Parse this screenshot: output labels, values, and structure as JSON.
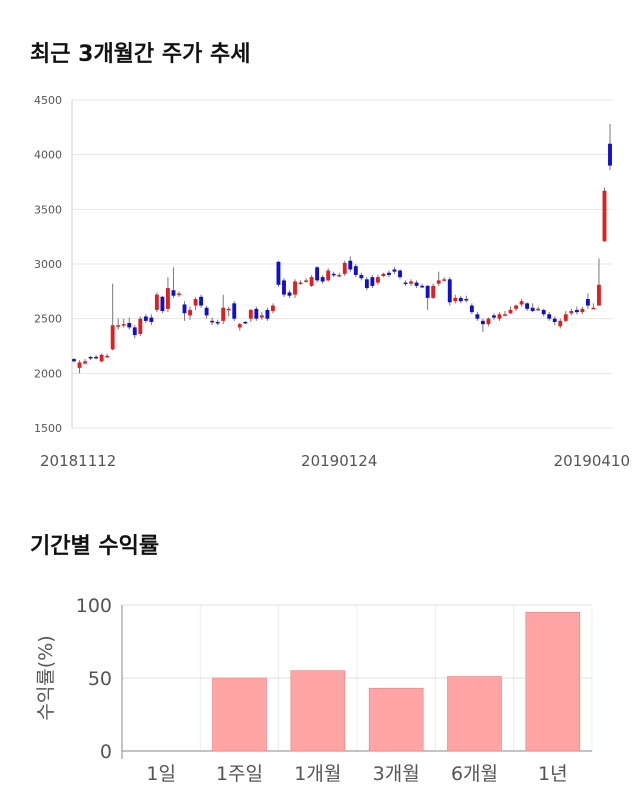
{
  "section1": {
    "title": "최근 3개월간 주가 추세"
  },
  "section2": {
    "title": "기간별 수익률"
  },
  "colors": {
    "up": "#e02020",
    "down": "#1010c8",
    "grid": "#e5e5e5",
    "bar": "#ffa5a5",
    "bar_stroke": "#e58080"
  },
  "chart_data": [
    {
      "type": "candlestick",
      "title": "최근 3개월간 주가 추세",
      "ylim": [
        1500,
        4500
      ],
      "yticks": [
        "4500",
        "4000",
        "3500",
        "3000",
        "2500",
        "2000",
        "1500"
      ],
      "xtick_labels": [
        "20181112",
        "20190124",
        "20190410"
      ],
      "xtick_index": [
        0,
        48,
        98
      ],
      "candles": [
        [
          2130,
          2110,
          2140,
          2100
        ],
        [
          2050,
          2100,
          2120,
          2000
        ],
        [
          2090,
          2110,
          2130,
          2080
        ],
        [
          2150,
          2140,
          2160,
          2120
        ],
        [
          2150,
          2140,
          2170,
          2130
        ],
        [
          2110,
          2170,
          2180,
          2100
        ],
        [
          2160,
          2160,
          2180,
          2140
        ],
        [
          2220,
          2440,
          2820,
          2210
        ],
        [
          2430,
          2440,
          2500,
          2400
        ],
        [
          2440,
          2450,
          2500,
          2420
        ],
        [
          2460,
          2420,
          2510,
          2400
        ],
        [
          2420,
          2350,
          2440,
          2320
        ],
        [
          2360,
          2500,
          2520,
          2340
        ],
        [
          2520,
          2480,
          2540,
          2460
        ],
        [
          2510,
          2470,
          2540,
          2440
        ],
        [
          2580,
          2720,
          2740,
          2560
        ],
        [
          2700,
          2570,
          2710,
          2550
        ],
        [
          2590,
          2780,
          2880,
          2560
        ],
        [
          2760,
          2710,
          2970,
          2690
        ],
        [
          2730,
          2730,
          2750,
          2700
        ],
        [
          2630,
          2550,
          2660,
          2480
        ],
        [
          2530,
          2580,
          2610,
          2490
        ],
        [
          2620,
          2680,
          2700,
          2580
        ],
        [
          2700,
          2620,
          2720,
          2600
        ],
        [
          2600,
          2530,
          2620,
          2500
        ],
        [
          2480,
          2470,
          2510,
          2440
        ],
        [
          2470,
          2460,
          2490,
          2440
        ],
        [
          2480,
          2600,
          2720,
          2450
        ],
        [
          2590,
          2590,
          2610,
          2520
        ],
        [
          2640,
          2500,
          2660,
          2480
        ],
        [
          2420,
          2450,
          2460,
          2390
        ],
        [
          2470,
          2460,
          2480,
          2450
        ],
        [
          2500,
          2580,
          2590,
          2470
        ],
        [
          2590,
          2500,
          2610,
          2480
        ],
        [
          2510,
          2530,
          2560,
          2490
        ],
        [
          2580,
          2500,
          2600,
          2480
        ],
        [
          2570,
          2620,
          2640,
          2550
        ],
        [
          3020,
          2810,
          3030,
          2790
        ],
        [
          2850,
          2720,
          2870,
          2700
        ],
        [
          2740,
          2710,
          2760,
          2690
        ],
        [
          2720,
          2840,
          2860,
          2690
        ],
        [
          2830,
          2830,
          2850,
          2810
        ],
        [
          2850,
          2850,
          2870,
          2830
        ],
        [
          2800,
          2880,
          2900,
          2790
        ],
        [
          2970,
          2850,
          2980,
          2830
        ],
        [
          2880,
          2840,
          2900,
          2820
        ],
        [
          2850,
          2940,
          2960,
          2840
        ],
        [
          2910,
          2900,
          2930,
          2880
        ],
        [
          2900,
          2900,
          2920,
          2880
        ],
        [
          2910,
          3010,
          3030,
          2890
        ],
        [
          3030,
          2950,
          3070,
          2930
        ],
        [
          2980,
          2900,
          3000,
          2880
        ],
        [
          2900,
          2870,
          2920,
          2850
        ],
        [
          2860,
          2780,
          2880,
          2760
        ],
        [
          2880,
          2800,
          2900,
          2780
        ],
        [
          2830,
          2880,
          2900,
          2810
        ],
        [
          2890,
          2910,
          2920,
          2880
        ],
        [
          2920,
          2900,
          2940,
          2880
        ],
        [
          2950,
          2930,
          2970,
          2910
        ],
        [
          2940,
          2880,
          2950,
          2860
        ],
        [
          2830,
          2820,
          2850,
          2800
        ],
        [
          2820,
          2840,
          2860,
          2800
        ],
        [
          2830,
          2800,
          2850,
          2780
        ],
        [
          2800,
          2790,
          2820,
          2780
        ],
        [
          2800,
          2690,
          2810,
          2580
        ],
        [
          2690,
          2800,
          2820,
          2680
        ],
        [
          2820,
          2850,
          2930,
          2800
        ],
        [
          2860,
          2860,
          2880,
          2840
        ],
        [
          2860,
          2650,
          2880,
          2620
        ],
        [
          2660,
          2690,
          2720,
          2640
        ],
        [
          2690,
          2660,
          2710,
          2640
        ],
        [
          2680,
          2670,
          2710,
          2650
        ],
        [
          2620,
          2560,
          2640,
          2540
        ],
        [
          2540,
          2500,
          2560,
          2480
        ],
        [
          2480,
          2450,
          2500,
          2380
        ],
        [
          2450,
          2500,
          2510,
          2430
        ],
        [
          2530,
          2510,
          2550,
          2490
        ],
        [
          2500,
          2540,
          2560,
          2480
        ],
        [
          2540,
          2540,
          2570,
          2520
        ],
        [
          2550,
          2580,
          2610,
          2540
        ],
        [
          2590,
          2620,
          2630,
          2570
        ],
        [
          2630,
          2660,
          2680,
          2610
        ],
        [
          2640,
          2590,
          2650,
          2570
        ],
        [
          2600,
          2570,
          2640,
          2560
        ],
        [
          2590,
          2590,
          2610,
          2570
        ],
        [
          2580,
          2540,
          2590,
          2520
        ],
        [
          2540,
          2500,
          2560,
          2480
        ],
        [
          2500,
          2470,
          2520,
          2440
        ],
        [
          2430,
          2480,
          2500,
          2410
        ],
        [
          2480,
          2540,
          2570,
          2470
        ],
        [
          2550,
          2570,
          2590,
          2530
        ],
        [
          2580,
          2560,
          2610,
          2540
        ],
        [
          2560,
          2590,
          2610,
          2540
        ],
        [
          2680,
          2620,
          2730,
          2590
        ],
        [
          2600,
          2600,
          2640,
          2590
        ],
        [
          2620,
          2810,
          3050,
          2620
        ],
        [
          3210,
          3670,
          3700,
          3200
        ],
        [
          4100,
          3900,
          4280,
          3860
        ]
      ]
    },
    {
      "type": "bar",
      "categories": [
        "1일",
        "1주일",
        "1개월",
        "3개월",
        "6개월",
        "1년"
      ],
      "values": [
        0,
        50,
        55,
        43,
        51,
        95
      ],
      "ylabel": "수익률(%)",
      "ylim": [
        0,
        100
      ],
      "yticks": [
        "100",
        "50",
        "0"
      ]
    }
  ]
}
